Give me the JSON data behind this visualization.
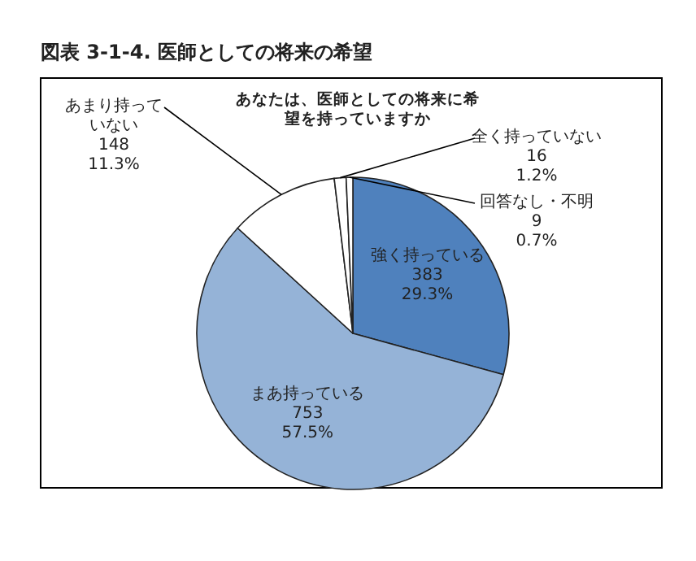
{
  "chart_data": {
    "type": "pie",
    "title": "図表 3-1-4.  医師としての将来の希望",
    "subtitle": "あなたは、医師としての将来に希望を持っていますか",
    "categories": [
      "強く持っている",
      "まあ持っている",
      "あまり持っていない",
      "全く持っていない",
      "回答なし・不明"
    ],
    "values": [
      383,
      753,
      148,
      16,
      9
    ],
    "value_labels": [
      "383\n29.3%",
      "753\n57.5%",
      "148\n11.3%",
      "16\n1.2%",
      "9\n0.7%"
    ],
    "colors": [
      "#4f81bd",
      "#95b3d7",
      "#ffffff",
      "#ffffff",
      "#ffffff"
    ]
  }
}
